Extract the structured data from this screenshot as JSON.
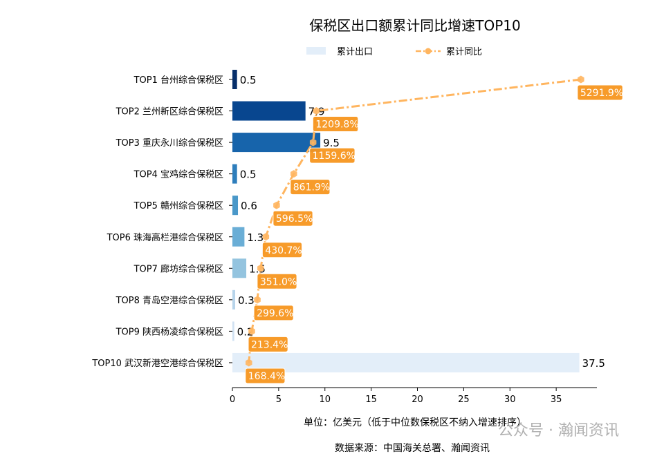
{
  "chart_data": {
    "type": "bar",
    "orientation": "horizontal",
    "title": "保税区出口额累计同比增速TOP10",
    "categories": [
      "TOP1 台州综合保税区",
      "TOP2 兰州新区综合保税区",
      "TOP3 重庆永川综合保税区",
      "TOP4 宝鸡综合保税区",
      "TOP5 赣州综合保税区",
      "TOP6 珠海高栏港综合保税区",
      "TOP7 廊坊综合保税区",
      "TOP8 青岛空港综合保税区",
      "TOP9 陕西杨凌综合保税区",
      "TOP10 武汉新港空港综合保税区"
    ],
    "series": [
      {
        "name": "累计出口",
        "type": "bar",
        "values": [
          0.5,
          7.9,
          9.5,
          0.5,
          0.6,
          1.3,
          1.5,
          0.3,
          0.2,
          37.5
        ],
        "value_labels": [
          "0.5",
          "7.9",
          "9.5",
          "0.5",
          "0.6",
          "1.3",
          "1.5",
          "0.3",
          "0.2",
          "37.5"
        ],
        "colors": [
          "#08306b",
          "#08468f",
          "#1764ab",
          "#2e7ebc",
          "#4a98c9",
          "#6aaed6",
          "#94c4df",
          "#b7d4ea",
          "#d0e1f2",
          "#e3eef9"
        ]
      },
      {
        "name": "累计同比",
        "type": "line",
        "style": "dash-dot",
        "marker": "hexagon",
        "color": "#ffb55f",
        "label_bg": "#f7961f",
        "values": [
          5291.9,
          1209.8,
          1159.6,
          861.9,
          596.5,
          430.7,
          351.0,
          299.6,
          213.4,
          168.4
        ],
        "value_labels": [
          "5291.9%",
          "1209.8%",
          "1159.6%",
          "861.9%",
          "596.5%",
          "430.7%",
          "351.0%",
          "299.6%",
          "213.4%",
          "168.4%"
        ]
      }
    ],
    "xlim": [
      0,
      39.4
    ],
    "xticks": [
      "0",
      "5",
      "10",
      "15",
      "20",
      "25",
      "30",
      "35"
    ],
    "xlabel": "单位：亿美元（低于中位数保税区不纳入增速排序）",
    "legend_position": "top-center",
    "grid": false
  },
  "source": "数据来源：中国海关总署、瀚闻资讯",
  "watermark": "公众号 · 瀚闻资讯"
}
